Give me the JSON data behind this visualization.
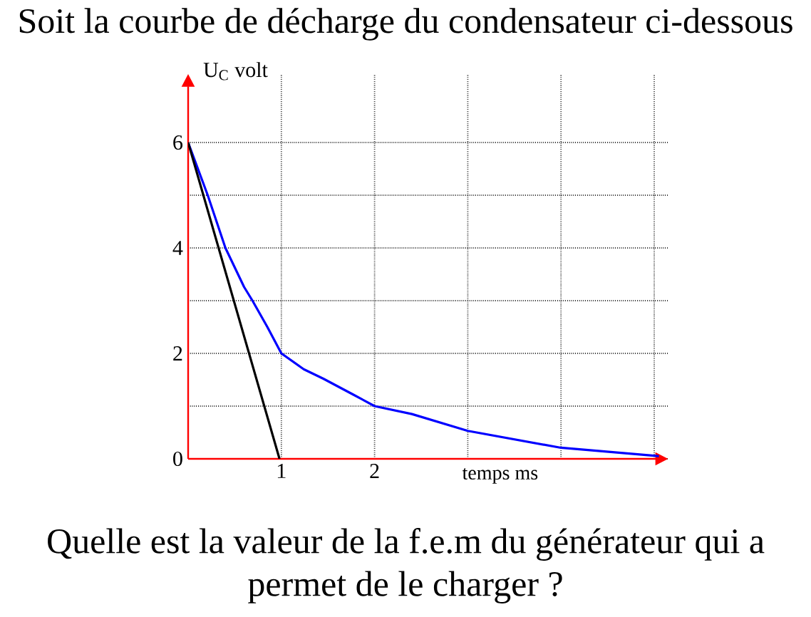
{
  "chart_data": {
    "type": "line",
    "title": "Soit la courbe de décharge du condensateur ci-dessous",
    "xlabel": "temps ms",
    "ylabel": "U$_{C}$ volt",
    "annotations": [
      "Quelle est la valeur de la f.e.m du générateur qui a permet de le charger ?"
    ],
    "series": [
      {
        "color": "#0000ff",
        "x": [
          0,
          0.21,
          0.4,
          0.6,
          0.69,
          0.85,
          1,
          1.24,
          1.45,
          1.77,
          2,
          2.4,
          3,
          4,
          5,
          5.05
        ],
        "values": [
          6,
          5,
          4,
          3.26,
          3,
          2.5,
          2,
          1.7,
          1.52,
          1.22,
          1,
          0.85,
          0.53,
          0.21,
          0.06,
          0.05
        ]
      },
      {
        "color": "#000000",
        "x": [
          0,
          0.98
        ],
        "values": [
          6,
          0
        ]
      }
    ],
    "xlim": [
      0,
      5.15
    ],
    "ylim": [
      0,
      7.3
    ],
    "xticks": [
      1,
      2,
      {
        "value": 3,
        "label": null
      },
      {
        "value": 4,
        "label": null
      },
      {
        "value": 5,
        "label": null
      }
    ],
    "yticks": [
      0,
      {
        "value": 1,
        "label": null
      },
      2,
      {
        "value": 3,
        "label": null
      },
      4,
      {
        "value": 5,
        "label": null
      },
      6
    ],
    "grid": true
  }
}
